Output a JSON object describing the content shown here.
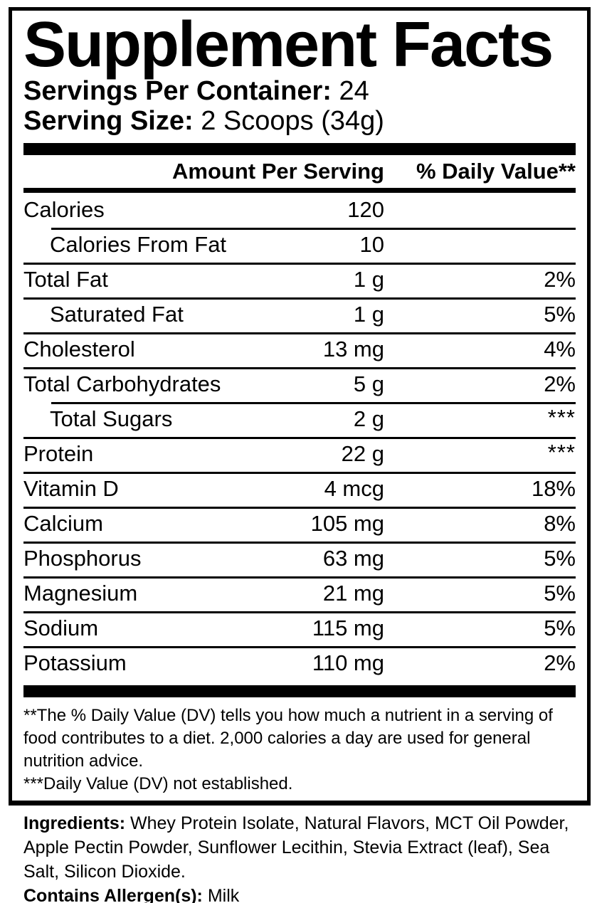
{
  "panel": {
    "title": "Supplement Facts",
    "servings_per_container": {
      "label": "Servings Per Container:",
      "value": "24"
    },
    "serving_size": {
      "label": "Serving Size:",
      "value": "2 Scoops (34g)"
    },
    "columns": {
      "amount": "Amount Per Serving",
      "daily_value": "% Daily Value**"
    },
    "rows": [
      {
        "name": "Calories",
        "amount": "120",
        "daily_value": "",
        "indent": false,
        "separator_above": "none"
      },
      {
        "name": "Calories From Fat",
        "amount": "10",
        "daily_value": "",
        "indent": true,
        "separator_above": "indent"
      },
      {
        "name": "Total Fat",
        "amount": "1 g",
        "daily_value": "2%",
        "indent": false,
        "separator_above": "full"
      },
      {
        "name": "Saturated Fat",
        "amount": "1 g",
        "daily_value": "5%",
        "indent": true,
        "separator_above": "full"
      },
      {
        "name": "Cholesterol",
        "amount": "13 mg",
        "daily_value": "4%",
        "indent": false,
        "separator_above": "full"
      },
      {
        "name": "Total Carbohydrates",
        "amount": "5 g",
        "daily_value": "2%",
        "indent": false,
        "separator_above": "full"
      },
      {
        "name": "Total Sugars",
        "amount": "2 g",
        "daily_value": "***",
        "indent": true,
        "separator_above": "indent"
      },
      {
        "name": "Protein",
        "amount": "22 g",
        "daily_value": "***",
        "indent": false,
        "separator_above": "full"
      },
      {
        "name": "Vitamin D",
        "amount": "4 mcg",
        "daily_value": "18%",
        "indent": false,
        "separator_above": "full"
      },
      {
        "name": "Calcium",
        "amount": "105 mg",
        "daily_value": "8%",
        "indent": false,
        "separator_above": "full"
      },
      {
        "name": "Phosphorus",
        "amount": "63 mg",
        "daily_value": "5%",
        "indent": false,
        "separator_above": "full"
      },
      {
        "name": "Magnesium",
        "amount": "21 mg",
        "daily_value": "5%",
        "indent": false,
        "separator_above": "full"
      },
      {
        "name": "Sodium",
        "amount": "115 mg",
        "daily_value": "5%",
        "indent": false,
        "separator_above": "full"
      },
      {
        "name": "Potassium",
        "amount": "110 mg",
        "daily_value": "2%",
        "indent": false,
        "separator_above": "full"
      }
    ],
    "footnotes": [
      "**The % Daily Value (DV) tells you how much a nutrient in a serving of food contributes to a diet. 2,000 calories a day are used for general nutrition advice.",
      "***Daily Value (DV) not established."
    ]
  },
  "ingredients": {
    "label": "Ingredients:",
    "text": "Whey Protein Isolate, Natural Flavors, MCT Oil Powder, Apple Pectin Powder, Sunflower Lecithin, Stevia Extract (leaf), Sea Salt, Silicon Dioxide.",
    "allergen_label": "Contains Allergen(s):",
    "allergen_value": "Milk"
  },
  "colors": {
    "text": "#000000",
    "background": "#ffffff"
  }
}
